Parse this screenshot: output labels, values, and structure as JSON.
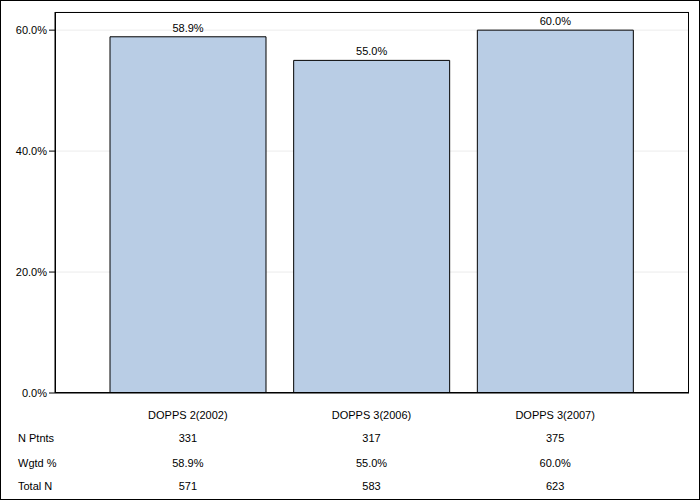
{
  "chart_data": {
    "type": "bar",
    "categories": [
      "DOPPS 2(2002)",
      "DOPPS 3(2006)",
      "DOPPS 3(2007)"
    ],
    "values": [
      58.9,
      55.0,
      60.0
    ],
    "value_labels": [
      "58.9%",
      "55.0%",
      "60.0%"
    ],
    "data_labels": true,
    "color": "#b9cde5",
    "ylim": [
      0,
      63
    ],
    "yticks": [
      {
        "value": 0,
        "label": "0.0%"
      },
      {
        "value": 20,
        "label": "20.0%"
      },
      {
        "value": 40,
        "label": "40.0%"
      },
      {
        "value": 60,
        "label": "60.0%"
      }
    ],
    "grid": true,
    "table": {
      "rows": [
        {
          "label": "N Ptnts",
          "values": [
            331,
            317,
            375
          ]
        },
        {
          "label": "Wgtd %",
          "values": [
            58.9,
            55.0,
            60.0
          ],
          "value_labels": [
            "58.9%",
            "55.0%",
            "60.0%"
          ]
        },
        {
          "label": "Total N",
          "values": [
            571,
            583,
            623
          ]
        }
      ]
    }
  }
}
